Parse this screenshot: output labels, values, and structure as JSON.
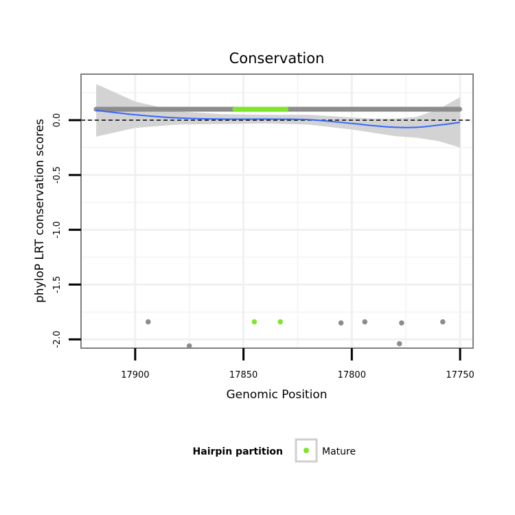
{
  "chart_data": {
    "type": "scatter",
    "title": "Conservation",
    "xlabel": "Genomic Position",
    "ylabel": "phyloP LRT conservation scores",
    "x_reversed": true,
    "xlim": [
      17925,
      17744
    ],
    "ylim": [
      -2.08,
      0.42
    ],
    "x_ticks": [
      17900,
      17850,
      17800,
      17750
    ],
    "x_tick_labels": [
      "17900",
      "17850",
      "17800",
      "17750"
    ],
    "y_ticks": [
      0.0,
      -0.5,
      -1.0,
      -1.5,
      -2.0
    ],
    "y_tick_labels": [
      "0.0",
      "-0.5",
      "-1.0",
      "-1.5",
      "-2.0"
    ],
    "grid": true,
    "reference_line": {
      "y": 0,
      "style": "dashed"
    },
    "legend": {
      "title": "Hairpin partition",
      "entries": [
        {
          "label": "Mature",
          "color": "#7fe52c"
        }
      ],
      "position": "bottom"
    },
    "colors": {
      "other": "#8c8c8c",
      "mature": "#7fe52c",
      "smooth": "#3366ff",
      "band": "#d3d3d3"
    },
    "dense_bands": [
      {
        "series": "other",
        "x_from": 17918,
        "x_to": 17750,
        "step": 0.55,
        "y": 0.1
      },
      {
        "series": "mature",
        "x_from": 17854,
        "x_to": 17830,
        "step": 0.55,
        "y": 0.1
      }
    ],
    "series": [
      {
        "name": "other",
        "points": [
          {
            "x": 17894,
            "y": -1.84
          },
          {
            "x": 17875,
            "y": -2.06
          },
          {
            "x": 17805,
            "y": -1.85
          },
          {
            "x": 17794,
            "y": -1.84
          },
          {
            "x": 17777,
            "y": -1.85
          },
          {
            "x": 17778,
            "y": -2.04
          },
          {
            "x": 17758,
            "y": -1.84
          }
        ]
      },
      {
        "name": "Mature",
        "points": [
          {
            "x": 17845,
            "y": -1.84
          },
          {
            "x": 17833,
            "y": -1.84
          }
        ]
      }
    ],
    "smooth": {
      "x": [
        17918,
        17900,
        17880,
        17860,
        17840,
        17820,
        17800,
        17790,
        17780,
        17770,
        17760,
        17750
      ],
      "y": [
        0.09,
        0.05,
        0.02,
        0.01,
        0.01,
        0.005,
        -0.03,
        -0.05,
        -0.065,
        -0.065,
        -0.045,
        -0.02
      ],
      "lower": [
        -0.15,
        -0.07,
        -0.04,
        -0.035,
        -0.03,
        -0.04,
        -0.085,
        -0.115,
        -0.145,
        -0.16,
        -0.19,
        -0.25
      ],
      "upper": [
        0.33,
        0.17,
        0.08,
        0.055,
        0.05,
        0.05,
        0.025,
        0.015,
        0.015,
        0.03,
        0.1,
        0.21
      ]
    }
  }
}
